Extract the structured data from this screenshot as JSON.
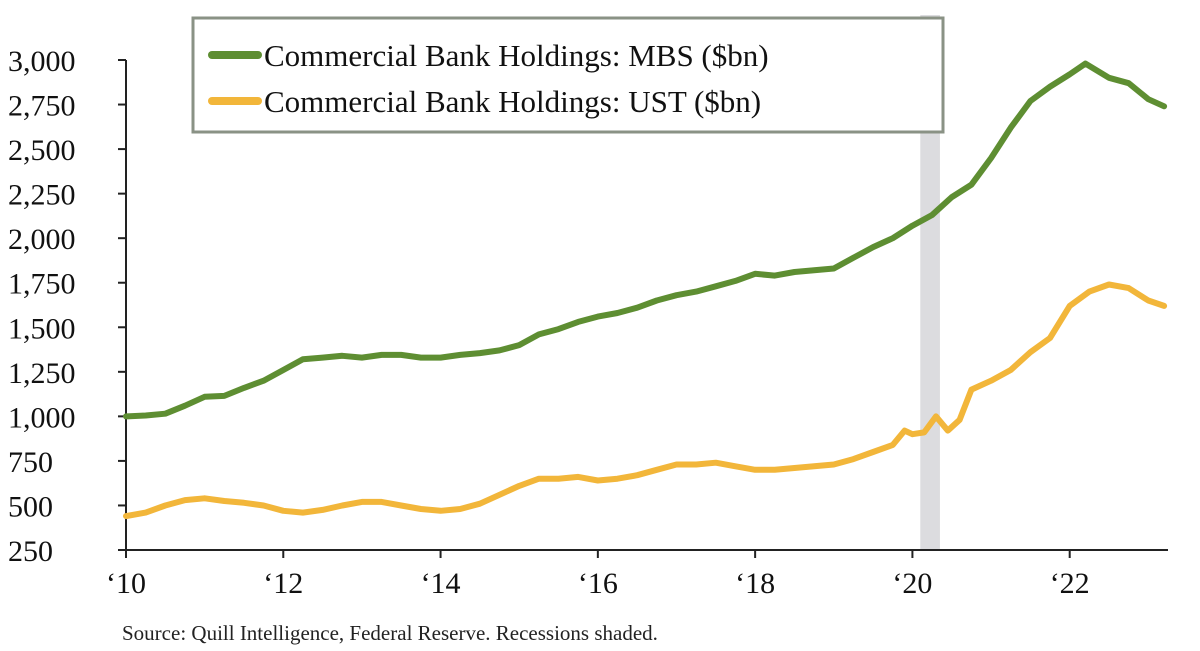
{
  "chart_data": {
    "type": "line",
    "title": "",
    "xlabel": "",
    "ylabel": "",
    "x_tick_labels": [
      "‘10",
      "‘12",
      "‘14",
      "‘16",
      "‘18",
      "‘20",
      "‘22"
    ],
    "x_tick_values": [
      2010,
      2012,
      2014,
      2016,
      2018,
      2020,
      2022
    ],
    "y_tick_labels": [
      "3,000",
      "2,750",
      "2,500",
      "2,250",
      "2,000",
      "1,750",
      "1,500",
      "1,250",
      "1,000",
      "750",
      "500",
      "250"
    ],
    "y_tick_values": [
      3000,
      2750,
      2500,
      2250,
      2000,
      1750,
      1500,
      1250,
      1000,
      750,
      500,
      250
    ],
    "xlim": [
      2010,
      2023.25
    ],
    "ylim": [
      250,
      3000
    ],
    "grid": false,
    "legend_position": "top-center",
    "recession_shading": [
      [
        2020.1,
        2020.35
      ]
    ],
    "series": [
      {
        "name": "Commercial Bank Holdings: MBS ($bn)",
        "color": "#5e8e32",
        "x": [
          2010.0,
          2010.25,
          2010.5,
          2010.75,
          2011.0,
          2011.25,
          2011.5,
          2011.75,
          2012.0,
          2012.25,
          2012.5,
          2012.75,
          2013.0,
          2013.25,
          2013.5,
          2013.75,
          2014.0,
          2014.25,
          2014.5,
          2014.75,
          2015.0,
          2015.25,
          2015.5,
          2015.75,
          2016.0,
          2016.25,
          2016.5,
          2016.75,
          2017.0,
          2017.25,
          2017.5,
          2017.75,
          2018.0,
          2018.25,
          2018.5,
          2018.75,
          2019.0,
          2019.25,
          2019.5,
          2019.75,
          2020.0,
          2020.25,
          2020.5,
          2020.75,
          2021.0,
          2021.25,
          2021.5,
          2021.75,
          2022.0,
          2022.2,
          2022.5,
          2022.75,
          2023.0,
          2023.2
        ],
        "values": [
          1000,
          1005,
          1015,
          1060,
          1110,
          1115,
          1160,
          1200,
          1260,
          1320,
          1330,
          1340,
          1330,
          1345,
          1345,
          1330,
          1330,
          1345,
          1355,
          1370,
          1400,
          1460,
          1490,
          1530,
          1560,
          1580,
          1610,
          1650,
          1680,
          1700,
          1730,
          1760,
          1800,
          1790,
          1810,
          1820,
          1830,
          1890,
          1950,
          2000,
          2070,
          2130,
          2230,
          2300,
          2450,
          2620,
          2770,
          2850,
          2920,
          2980,
          2900,
          2870,
          2780,
          2740
        ]
      },
      {
        "name": "Commercial Bank Holdings: UST ($bn)",
        "color": "#f2b63a",
        "x": [
          2010.0,
          2010.25,
          2010.5,
          2010.75,
          2011.0,
          2011.25,
          2011.5,
          2011.75,
          2012.0,
          2012.25,
          2012.5,
          2012.75,
          2013.0,
          2013.25,
          2013.5,
          2013.75,
          2014.0,
          2014.25,
          2014.5,
          2014.75,
          2015.0,
          2015.25,
          2015.5,
          2015.75,
          2016.0,
          2016.25,
          2016.5,
          2016.75,
          2017.0,
          2017.25,
          2017.5,
          2017.75,
          2018.0,
          2018.25,
          2018.5,
          2018.75,
          2019.0,
          2019.25,
          2019.5,
          2019.75,
          2019.9,
          2020.0,
          2020.15,
          2020.3,
          2020.45,
          2020.6,
          2020.75,
          2021.0,
          2021.25,
          2021.5,
          2021.75,
          2022.0,
          2022.25,
          2022.5,
          2022.75,
          2023.0,
          2023.2
        ],
        "values": [
          440,
          460,
          500,
          530,
          540,
          525,
          515,
          500,
          470,
          460,
          475,
          500,
          520,
          520,
          500,
          480,
          470,
          480,
          510,
          560,
          610,
          650,
          650,
          660,
          640,
          650,
          670,
          700,
          730,
          730,
          740,
          720,
          700,
          700,
          710,
          720,
          730,
          760,
          800,
          840,
          920,
          900,
          910,
          1000,
          920,
          980,
          1150,
          1200,
          1260,
          1360,
          1440,
          1620,
          1700,
          1740,
          1720,
          1650,
          1620
        ]
      }
    ],
    "legend": [
      "Commercial Bank Holdings: MBS ($bn)",
      "Commercial Bank Holdings: UST ($bn)"
    ],
    "source_note": "Source: Quill Intelligence, Federal Reserve. Recessions shaded."
  }
}
